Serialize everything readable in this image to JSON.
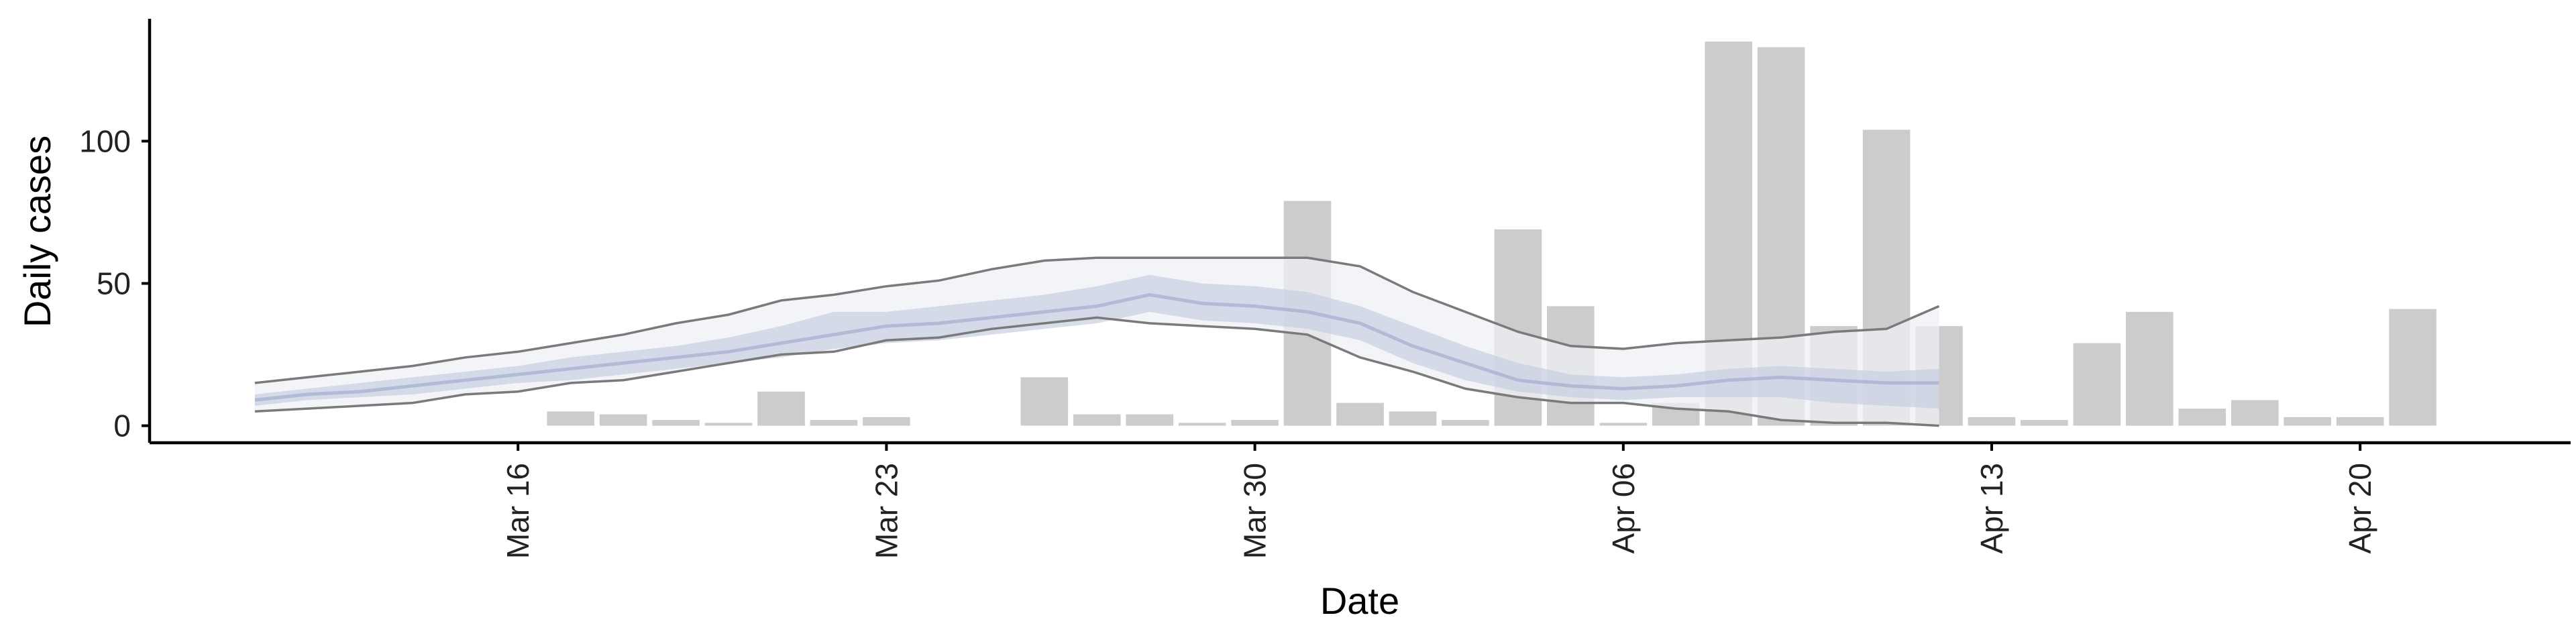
{
  "chart_data": {
    "type": "bar",
    "title": "",
    "xlabel": "Date",
    "ylabel": "Daily cases",
    "x_range": [
      "2020-03-09",
      "2020-04-24"
    ],
    "ylim": [
      -6,
      143
    ],
    "yticks": [
      0,
      50,
      100
    ],
    "xticks": [
      {
        "date": "2020-03-16",
        "label": "Mar 16"
      },
      {
        "date": "2020-03-23",
        "label": "Mar 23"
      },
      {
        "date": "2020-03-30",
        "label": "Mar 30"
      },
      {
        "date": "2020-04-06",
        "label": "Apr 06"
      },
      {
        "date": "2020-04-13",
        "label": "Apr 13"
      },
      {
        "date": "2020-04-20",
        "label": "Apr 20"
      }
    ],
    "grid": false,
    "legend": "none",
    "colors": {
      "bars": "#cccccc",
      "band_outer": "#eef0f6",
      "band_inner": "#c8cee1",
      "median_line": "#a9b3d1",
      "outer_lines": "#7a7a7a"
    },
    "bars": {
      "x": [
        "2020-03-17",
        "2020-03-18",
        "2020-03-19",
        "2020-03-20",
        "2020-03-21",
        "2020-03-22",
        "2020-03-23",
        "2020-03-24",
        "2020-03-26",
        "2020-03-27",
        "2020-03-28",
        "2020-03-29",
        "2020-03-30",
        "2020-03-31",
        "2020-04-01",
        "2020-04-02",
        "2020-04-03",
        "2020-04-04",
        "2020-04-05",
        "2020-04-06",
        "2020-04-07",
        "2020-04-08",
        "2020-04-09",
        "2020-04-10",
        "2020-04-11",
        "2020-04-12",
        "2020-04-13",
        "2020-04-14",
        "2020-04-15",
        "2020-04-16",
        "2020-04-17",
        "2020-04-18",
        "2020-04-19",
        "2020-04-20",
        "2020-04-21"
      ],
      "values": [
        5,
        4,
        2,
        1,
        12,
        2,
        3,
        0,
        17,
        4,
        4,
        1,
        2,
        79,
        8,
        5,
        2,
        69,
        42,
        1,
        8,
        135,
        133,
        35,
        104,
        35,
        3,
        2,
        29,
        40,
        6,
        9,
        3,
        3,
        41
      ]
    },
    "estimate": {
      "x": [
        "2020-03-11",
        "2020-03-12",
        "2020-03-13",
        "2020-03-14",
        "2020-03-15",
        "2020-03-16",
        "2020-03-17",
        "2020-03-18",
        "2020-03-19",
        "2020-03-20",
        "2020-03-21",
        "2020-03-22",
        "2020-03-23",
        "2020-03-24",
        "2020-03-25",
        "2020-03-26",
        "2020-03-27",
        "2020-03-28",
        "2020-03-29",
        "2020-03-30",
        "2020-03-31",
        "2020-04-01",
        "2020-04-02",
        "2020-04-03",
        "2020-04-04",
        "2020-04-05",
        "2020-04-06",
        "2020-04-07",
        "2020-04-08",
        "2020-04-09",
        "2020-04-10",
        "2020-04-11",
        "2020-04-12"
      ],
      "upper_90": [
        15,
        17,
        19,
        21,
        24,
        26,
        29,
        32,
        36,
        39,
        44,
        46,
        49,
        51,
        55,
        58,
        59,
        59,
        59,
        59,
        59,
        56,
        47,
        40,
        33,
        28,
        27,
        29,
        30,
        31,
        33,
        34,
        42
      ],
      "upper_50": [
        11,
        13,
        15,
        17,
        19,
        21,
        24,
        26,
        28,
        31,
        35,
        40,
        40,
        42,
        44,
        46,
        49,
        53,
        50,
        49,
        47,
        42,
        35,
        28,
        22,
        18,
        17,
        18,
        20,
        21,
        20,
        19,
        20
      ],
      "median": [
        9,
        11,
        12,
        14,
        16,
        18,
        20,
        22,
        24,
        26,
        29,
        32,
        35,
        36,
        38,
        40,
        42,
        46,
        43,
        42,
        40,
        36,
        28,
        22,
        16,
        14,
        13,
        14,
        16,
        17,
        16,
        15,
        15
      ],
      "lower_50": [
        7,
        9,
        10,
        11,
        13,
        15,
        16,
        18,
        20,
        22,
        24,
        27,
        29,
        30,
        32,
        34,
        36,
        40,
        37,
        36,
        34,
        30,
        22,
        16,
        12,
        10,
        9,
        10,
        10,
        10,
        8,
        7,
        6
      ],
      "lower_90": [
        5,
        6,
        7,
        8,
        11,
        12,
        15,
        16,
        19,
        22,
        25,
        26,
        30,
        31,
        34,
        36,
        38,
        36,
        35,
        34,
        32,
        24,
        19,
        13,
        10,
        8,
        8,
        6,
        5,
        2,
        1,
        1,
        0
      ]
    }
  }
}
